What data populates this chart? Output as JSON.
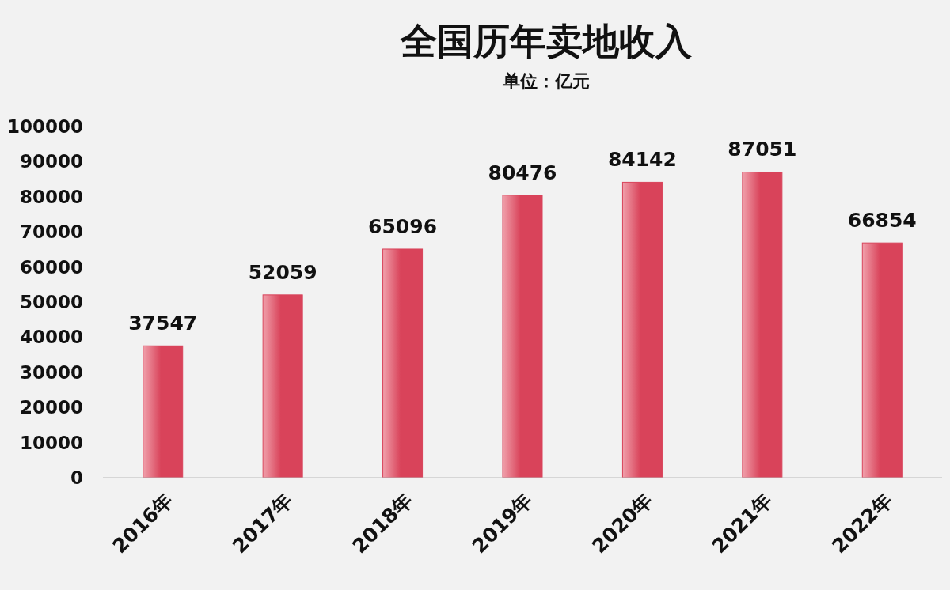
{
  "chart_data": {
    "type": "bar",
    "title": "全国历年卖地收入",
    "subtitle": "单位：亿元",
    "categories": [
      "2016年",
      "2017年",
      "2018年",
      "2019年",
      "2020年",
      "2021年",
      "2022年"
    ],
    "values": [
      37547,
      52059,
      65096,
      80476,
      84142,
      87051,
      66854
    ],
    "color": "#d9435a",
    "ylim": [
      0,
      100000
    ],
    "yticks": [
      0,
      10000,
      20000,
      30000,
      40000,
      50000,
      60000,
      70000,
      80000,
      90000,
      100000
    ],
    "data_labels": true
  }
}
